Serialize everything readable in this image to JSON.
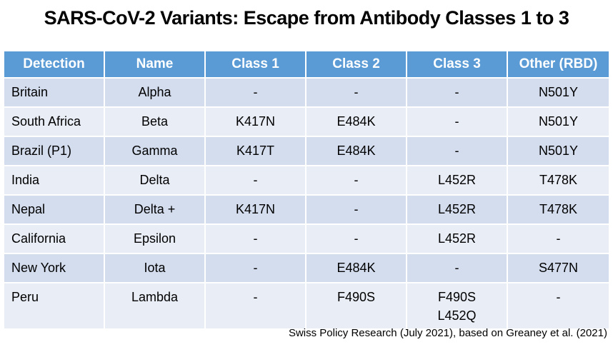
{
  "title": "SARS-CoV-2 Variants: Escape from Antibody Classes 1 to 3",
  "colors": {
    "header_bg": "#5B9BD5",
    "header_text": "#FFFFFF",
    "row_band_dark": "#D3DDEE",
    "row_band_light": "#E9EDF6",
    "text": "#000000"
  },
  "table": {
    "columns": [
      "Detection",
      "Name",
      "Class 1",
      "Class 2",
      "Class 3",
      "Other (RBD)"
    ],
    "rows": [
      {
        "detection": "Britain",
        "name": "Alpha",
        "class1": "-",
        "class2": "-",
        "class3": "-",
        "other": "N501Y"
      },
      {
        "detection": "South Africa",
        "name": "Beta",
        "class1": "K417N",
        "class2": "E484K",
        "class3": "-",
        "other": "N501Y"
      },
      {
        "detection": "Brazil (P1)",
        "name": "Gamma",
        "class1": "K417T",
        "class2": "E484K",
        "class3": "-",
        "other": "N501Y"
      },
      {
        "detection": "India",
        "name": "Delta",
        "class1": "-",
        "class2": "-",
        "class3": "L452R",
        "other": "T478K"
      },
      {
        "detection": "Nepal",
        "name": "Delta +",
        "class1": "K417N",
        "class2": "-",
        "class3": "L452R",
        "other": "T478K"
      },
      {
        "detection": "California",
        "name": "Epsilon",
        "class1": "-",
        "class2": "-",
        "class3": "L452R",
        "other": "-"
      },
      {
        "detection": "New York",
        "name": "Iota",
        "class1": "-",
        "class2": "E484K",
        "class3": "-",
        "other": "S477N"
      },
      {
        "detection": "Peru",
        "name": "Lambda",
        "class1": "-",
        "class2": "F490S",
        "class3": "F490S\nL452Q",
        "other": "-"
      }
    ]
  },
  "footer": "Swiss Policy Research (July 2021), based on Greaney et al. (2021)"
}
